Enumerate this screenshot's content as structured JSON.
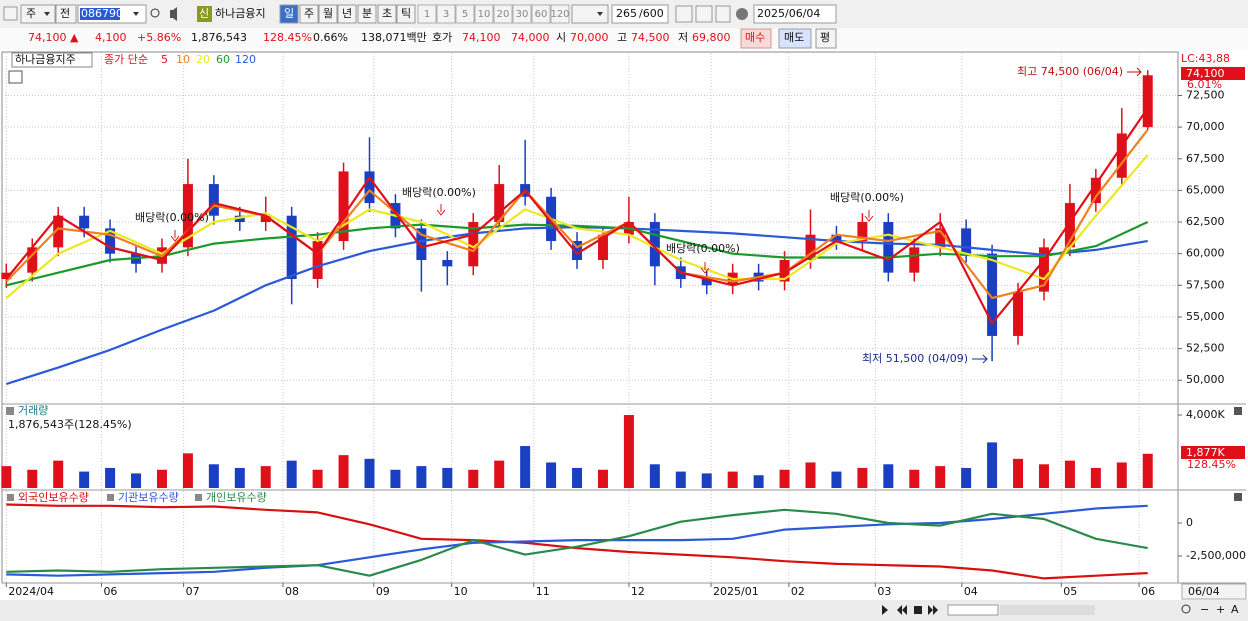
{
  "toolbar": {
    "period": "주",
    "prev": "전",
    "code": "086790",
    "name": "하나금융지",
    "new": "신",
    "intervals": [
      "일",
      "주",
      "월",
      "년",
      "분",
      "초",
      "틱"
    ],
    "counts": [
      "1",
      "3",
      "5",
      "10",
      "20",
      "30",
      "60",
      "120"
    ],
    "view": "265",
    "total": "/600",
    "date": "2025/06/04"
  },
  "quote": {
    "price": "74,100 ▲",
    "change": "4,100",
    "change_pct": "+5.86%",
    "volume": "1,876,543",
    "volume_ratio": "128.45%",
    "turnover": "0.66%",
    "amount": "138,071백만",
    "ask_label": "호가",
    "ask": "74,100",
    "bid": "74,000",
    "open_label": "시",
    "open": "70,000",
    "high_label": "고",
    "high": "74,500",
    "low_label": "저",
    "low": "69,800",
    "buy": "매수",
    "sell": "매도",
    "avg": "평"
  },
  "bottom_bar": {
    "zoom_out": "−",
    "zoom_in": "+",
    "font": "A"
  },
  "chart_data": [
    {
      "type": "candlestick",
      "title": "하나금융지주",
      "subtitle": "종가 단순",
      "lc_label": "LC:43,88",
      "last_label": "74,100",
      "change_label": "6.01%",
      "cursor_label": "06/04",
      "annotations": [
        "배당락(0.00%)",
        "배당락(0.00%)",
        "배당락(0.00%)",
        "배당락(0.00%)",
        "최고 74,500 (06/04)",
        "최저 51,500 (04/09)"
      ],
      "up_color": "#e0101a",
      "down_color": "#1a3fc0",
      "grid": true,
      "xlim": [
        -1,
        271
      ],
      "xticks": [
        {
          "value": 0,
          "label": "2024/04"
        },
        {
          "value": 22,
          "label": "06"
        },
        {
          "value": 41,
          "label": "07"
        },
        {
          "value": 64,
          "label": "08"
        },
        {
          "value": 85,
          "label": "09"
        },
        {
          "value": 103,
          "label": "10"
        },
        {
          "value": 122,
          "label": "11"
        },
        {
          "value": 144,
          "label": "12"
        },
        {
          "value": 163,
          "label": "2025/01"
        },
        {
          "value": 181,
          "label": "02"
        },
        {
          "value": 201,
          "label": "03"
        },
        {
          "value": 221,
          "label": "04"
        },
        {
          "value": 244,
          "label": "05"
        },
        {
          "value": 262,
          "label": "06"
        }
      ],
      "ylim": [
        48200,
        75700
      ],
      "yticks": [
        {
          "value": 50000,
          "label": "50,000"
        },
        {
          "value": 52500,
          "label": "52,500"
        },
        {
          "value": 55000,
          "label": "55,000"
        },
        {
          "value": 57500,
          "label": "57,500"
        },
        {
          "value": 60000,
          "label": "60,000"
        },
        {
          "value": 62500,
          "label": "62,500"
        },
        {
          "value": 65000,
          "label": "65,000"
        },
        {
          "value": 67500,
          "label": "67,500"
        },
        {
          "value": 70000,
          "label": "70,000"
        },
        {
          "value": 72500,
          "label": "72,500"
        }
      ],
      "x": [
        0,
        6,
        12,
        18,
        24,
        30,
        36,
        42,
        48,
        54,
        60,
        66,
        72,
        78,
        84,
        90,
        96,
        102,
        108,
        114,
        120,
        126,
        132,
        138,
        144,
        150,
        156,
        162,
        168,
        174,
        180,
        186,
        192,
        198,
        204,
        210,
        216,
        222,
        228,
        234,
        240,
        246,
        252,
        258,
        264
      ],
      "open": [
        58000,
        58500,
        60500,
        63000,
        62000,
        60000,
        59200,
        60500,
        65500,
        63000,
        62500,
        63000,
        58000,
        61000,
        66500,
        64000,
        62000,
        59500,
        59000,
        62500,
        65500,
        64500,
        61000,
        59500,
        61500,
        62500,
        59000,
        58000,
        57500,
        58500,
        57800,
        59500,
        61500,
        61000,
        62500,
        58500,
        60500,
        62000,
        60000,
        53500,
        57000,
        60500,
        64000,
        66000,
        70000
      ],
      "high": [
        59200,
        61200,
        63700,
        63700,
        62700,
        60700,
        61200,
        67500,
        66200,
        63700,
        64500,
        63700,
        61700,
        67200,
        69200,
        64700,
        62700,
        60200,
        63200,
        67000,
        69000,
        65200,
        61700,
        62200,
        64500,
        63200,
        59700,
        58700,
        59200,
        59200,
        60200,
        63500,
        62200,
        63200,
        63200,
        61200,
        63200,
        62700,
        60700,
        57700,
        61200,
        65500,
        66700,
        71500,
        74500
      ],
      "low": [
        57300,
        57800,
        59800,
        61300,
        59300,
        58500,
        58500,
        59800,
        62300,
        61800,
        61800,
        56000,
        57300,
        60300,
        63300,
        61300,
        57000,
        57500,
        58300,
        61800,
        63800,
        60300,
        58800,
        58800,
        60800,
        57500,
        57300,
        56800,
        56800,
        57100,
        57100,
        58800,
        60300,
        60300,
        57800,
        57800,
        59800,
        59300,
        51500,
        52800,
        56300,
        59800,
        63300,
        65300,
        69800
      ],
      "close": [
        58500,
        60500,
        63000,
        62000,
        60000,
        59200,
        60500,
        65500,
        63000,
        62500,
        63000,
        58000,
        61000,
        66500,
        64000,
        62000,
        59500,
        59000,
        62500,
        65500,
        64500,
        61000,
        59500,
        61500,
        62500,
        59000,
        58000,
        57500,
        58500,
        57800,
        59500,
        61500,
        61000,
        62500,
        58500,
        60500,
        62000,
        60000,
        53500,
        57000,
        60500,
        64000,
        66000,
        69500,
        74100
      ],
      "series": [
        {
          "name": "120",
          "color": "#2a5ad8",
          "x": [
            0,
            12,
            24,
            36,
            48,
            60,
            72,
            84,
            96,
            108,
            120,
            132,
            144,
            156,
            168,
            180,
            192,
            204,
            216,
            228,
            240,
            252,
            264
          ],
          "values": [
            49700,
            51000,
            52400,
            54000,
            55500,
            57500,
            59000,
            60200,
            61000,
            61600,
            62000,
            62100,
            62000,
            61800,
            61600,
            61300,
            61000,
            60800,
            60700,
            60300,
            59900,
            60300,
            61000
          ]
        },
        {
          "name": "60",
          "color": "#1a9a2a",
          "x": [
            0,
            12,
            24,
            36,
            48,
            60,
            72,
            84,
            96,
            108,
            120,
            132,
            144,
            156,
            168,
            180,
            192,
            204,
            216,
            228,
            240,
            252,
            264
          ],
          "values": [
            57500,
            58500,
            59500,
            59800,
            60800,
            61200,
            61500,
            62000,
            62300,
            62000,
            62300,
            62200,
            62000,
            61000,
            60000,
            59700,
            59700,
            59700,
            60000,
            59800,
            59800,
            60600,
            62500
          ]
        },
        {
          "name": "20",
          "color": "#ece820",
          "x": [
            0,
            12,
            24,
            36,
            48,
            60,
            72,
            84,
            96,
            108,
            120,
            132,
            144,
            156,
            168,
            180,
            192,
            204,
            216,
            228,
            240,
            252,
            264
          ],
          "values": [
            56500,
            60000,
            61800,
            60000,
            62500,
            63200,
            61000,
            63500,
            62500,
            60500,
            63500,
            62000,
            61500,
            59500,
            58000,
            58000,
            60800,
            61500,
            60500,
            59500,
            58000,
            63000,
            67800
          ]
        },
        {
          "name": "10",
          "color": "#f08020",
          "x": [
            0,
            12,
            24,
            36,
            48,
            60,
            72,
            84,
            96,
            108,
            120,
            132,
            144,
            156,
            168,
            180,
            192,
            204,
            216,
            228,
            240,
            252,
            264
          ],
          "values": [
            57800,
            62000,
            61500,
            59800,
            63800,
            63000,
            60000,
            65000,
            61500,
            60200,
            65000,
            60500,
            62500,
            58500,
            57800,
            58500,
            61500,
            61000,
            61800,
            56500,
            57500,
            64500,
            69800
          ]
        },
        {
          "name": "5",
          "color": "#e0101a",
          "x": [
            0,
            12,
            24,
            36,
            48,
            60,
            72,
            84,
            96,
            108,
            120,
            132,
            144,
            156,
            168,
            180,
            192,
            204,
            216,
            228,
            240,
            252,
            264
          ],
          "values": [
            58000,
            63000,
            60500,
            59500,
            64000,
            63000,
            60000,
            66000,
            60500,
            61500,
            65000,
            60000,
            62500,
            58500,
            57500,
            58500,
            61000,
            59500,
            62500,
            54500,
            59500,
            65500,
            71500
          ]
        }
      ]
    },
    {
      "type": "bar",
      "title": "거래량",
      "subtitle": "1,876,543주(128.45%)",
      "last_label": "1,877K",
      "ratio_label": "128.45%",
      "grid": false,
      "ylim": [
        0,
        4550000
      ],
      "yticks": [
        {
          "value": 4000000,
          "label": "4,000K"
        }
      ],
      "x": [
        0,
        6,
        12,
        18,
        24,
        30,
        36,
        42,
        48,
        54,
        60,
        66,
        72,
        78,
        84,
        90,
        96,
        102,
        108,
        114,
        120,
        126,
        132,
        138,
        144,
        150,
        156,
        162,
        168,
        174,
        180,
        186,
        192,
        198,
        204,
        210,
        216,
        222,
        228,
        234,
        240,
        246,
        252,
        258,
        264
      ],
      "values": [
        1200000,
        1000000,
        1500000,
        900000,
        1100000,
        800000,
        1000000,
        1900000,
        1300000,
        1100000,
        1200000,
        1500000,
        1000000,
        1800000,
        1600000,
        1000000,
        1200000,
        1100000,
        1000000,
        1500000,
        2300000,
        1400000,
        1100000,
        1000000,
        4000000,
        1300000,
        900000,
        800000,
        900000,
        700000,
        1000000,
        1400000,
        900000,
        1100000,
        1300000,
        1000000,
        1200000,
        1100000,
        2500000,
        1600000,
        1300000,
        1500000,
        1100000,
        1400000,
        1876543
      ]
    },
    {
      "type": "line",
      "grid": false,
      "ylim": [
        -4550000,
        2350000
      ],
      "yticks": [
        0,
        {
          "value": -2500000,
          "label": "-2,500,000"
        }
      ],
      "series": [
        {
          "name": "외국인보유수량",
          "color": "#d81010",
          "x": [
            0,
            12,
            24,
            36,
            48,
            60,
            72,
            84,
            96,
            108,
            120,
            132,
            144,
            156,
            168,
            180,
            192,
            204,
            216,
            228,
            240,
            252,
            264
          ],
          "values": [
            1400000,
            1300000,
            1300000,
            1200000,
            1250000,
            1000000,
            800000,
            -100000,
            -1200000,
            -1300000,
            -1500000,
            -1900000,
            -2200000,
            -2400000,
            -2600000,
            -2900000,
            -3100000,
            -3200000,
            -3300000,
            -3600000,
            -4200000,
            -4000000,
            -3800000
          ]
        },
        {
          "name": "기관보유수량",
          "color": "#2a5ad8",
          "x": [
            0,
            12,
            24,
            36,
            48,
            60,
            72,
            84,
            96,
            108,
            120,
            132,
            144,
            156,
            168,
            180,
            192,
            204,
            216,
            228,
            240,
            252,
            264
          ],
          "values": [
            -3900000,
            -4000000,
            -3900000,
            -3800000,
            -3700000,
            -3400000,
            -3200000,
            -2600000,
            -2000000,
            -1500000,
            -1400000,
            -1300000,
            -1300000,
            -1300000,
            -1200000,
            -500000,
            -300000,
            -100000,
            0,
            300000,
            700000,
            1100000,
            1300000
          ]
        },
        {
          "name": "개인보유수량",
          "color": "#2a8a4a",
          "x": [
            0,
            12,
            24,
            36,
            48,
            60,
            72,
            84,
            96,
            108,
            120,
            132,
            144,
            156,
            168,
            180,
            192,
            204,
            216,
            228,
            240,
            252,
            264
          ],
          "values": [
            -3700000,
            -3600000,
            -3700000,
            -3500000,
            -3400000,
            -3300000,
            -3200000,
            -4000000,
            -2800000,
            -1300000,
            -2400000,
            -1800000,
            -1000000,
            100000,
            600000,
            1000000,
            700000,
            0,
            -200000,
            700000,
            300000,
            -1200000,
            -1900000
          ]
        }
      ]
    }
  ]
}
